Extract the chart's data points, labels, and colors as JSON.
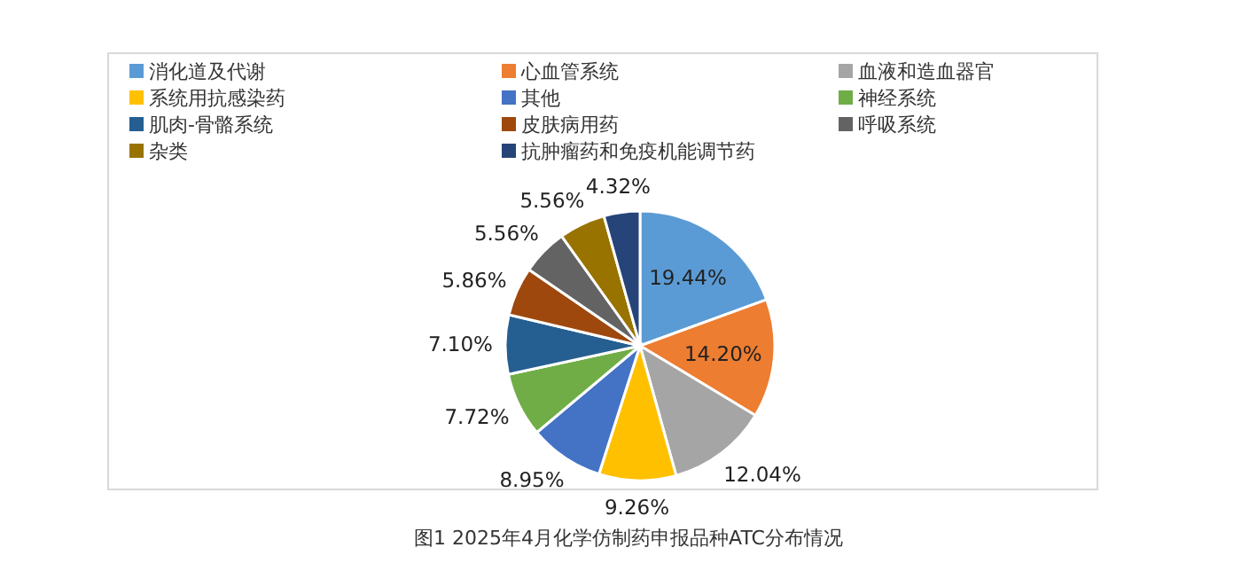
{
  "chart_data": {
    "type": "pie",
    "annotations": [
      "图1 2025年4月化学仿制药申报品种ATC分布情况"
    ],
    "categories": [
      "消化道及代谢",
      "心血管系统",
      "血液和造血器官",
      "系统用抗感染药",
      "其他",
      "神经系统",
      "肌肉-骨骼系统",
      "皮肤病用药",
      "呼吸系统",
      "杂类",
      "抗肿瘤药和免疫机能调节药"
    ],
    "values": [
      19.44,
      14.2,
      12.04,
      9.26,
      8.95,
      7.72,
      7.1,
      5.86,
      5.56,
      5.56,
      4.32
    ],
    "value_labels": [
      "19.44%",
      "14.20%",
      "12.04%",
      "9.26%",
      "8.95%",
      "7.72%",
      "7.10%",
      "5.86%",
      "5.56%",
      "5.56%",
      "4.32%"
    ],
    "colors": [
      "#5b9bd5",
      "#ed7d31",
      "#a5a5a5",
      "#ffc000",
      "#4472c4",
      "#70ad47",
      "#255e91",
      "#9e480e",
      "#636363",
      "#997300",
      "#264478"
    ],
    "legend": "top"
  }
}
